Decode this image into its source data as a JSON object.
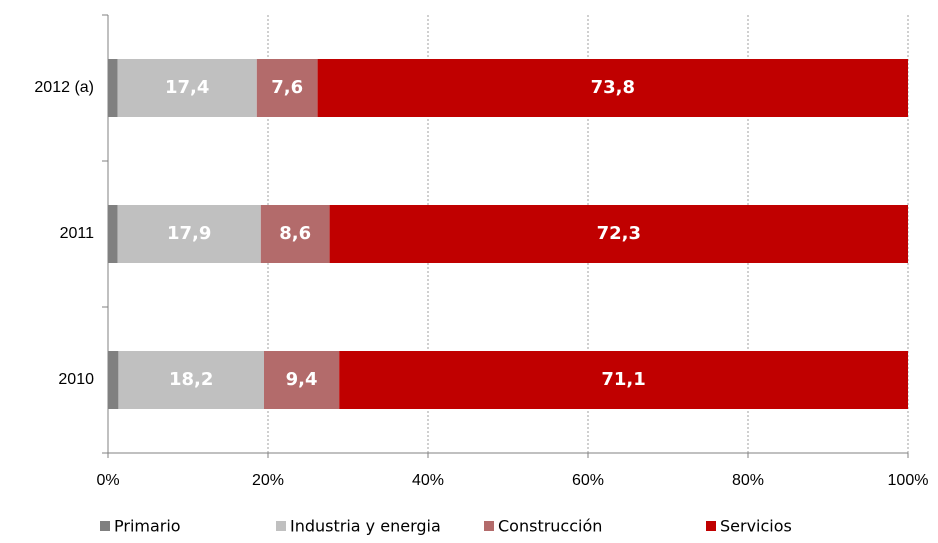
{
  "chart_data": {
    "type": "stacked_barh",
    "categories": [
      "2012 (a)",
      "2011",
      "2010"
    ],
    "series": [
      {
        "name": "Primario",
        "color": "#808080",
        "values": [
          1.2,
          1.2,
          1.3
        ]
      },
      {
        "name": "Industria y energia",
        "color": "#c0c0c0",
        "values": [
          17.4,
          17.9,
          18.2
        ],
        "value_labels": [
          "17,4",
          "17,9",
          "18,2"
        ]
      },
      {
        "name": "Construcción",
        "color": "#b36b6b",
        "values": [
          7.6,
          8.6,
          9.4
        ],
        "value_labels": [
          "7,6",
          "8,6",
          "9,4"
        ]
      },
      {
        "name": "Servicios",
        "color": "#c00000",
        "values": [
          73.8,
          72.3,
          71.1
        ],
        "value_labels": [
          "73,8",
          "72,3",
          "71,1"
        ]
      }
    ],
    "xlim": [
      0,
      100
    ],
    "xticks": [
      {
        "value": 0,
        "label": "0%"
      },
      {
        "value": 20,
        "label": "20%"
      },
      {
        "value": 40,
        "label": "40%"
      },
      {
        "value": 60,
        "label": "60%"
      },
      {
        "value": 80,
        "label": "80%"
      },
      {
        "value": 100,
        "label": "100%"
      }
    ],
    "grid": true,
    "legend": "bottom"
  }
}
